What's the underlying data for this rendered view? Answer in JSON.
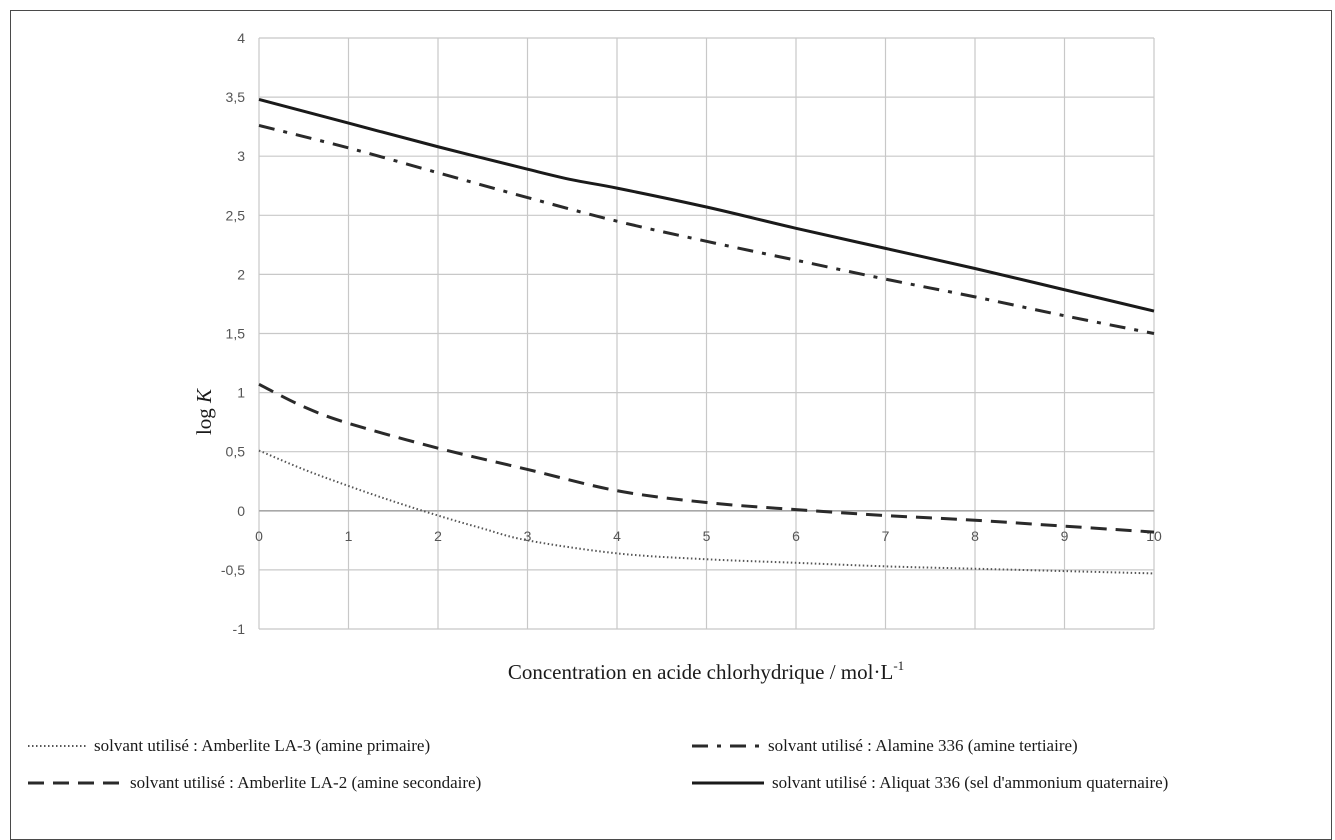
{
  "chart_data": {
    "type": "line",
    "xlabel": "Concentration en acide chlorhydrique / mol·L",
    "xlabel_superscript": "-1",
    "ylabel_prefix": "log ",
    "ylabel_variable": "K",
    "xlim": [
      0,
      10
    ],
    "ylim": [
      -1,
      4
    ],
    "x_ticks": [
      0,
      1,
      2,
      3,
      4,
      5,
      6,
      7,
      8,
      9,
      10
    ],
    "x_tick_labels": [
      "0",
      "1",
      "2",
      "3",
      "4",
      "5",
      "6",
      "7",
      "8",
      "9",
      "10"
    ],
    "y_ticks": [
      -1,
      -0.5,
      0,
      0.5,
      1,
      1.5,
      2,
      2.5,
      3,
      3.5,
      4
    ],
    "y_tick_labels": [
      "-1",
      "-0,5",
      "0",
      "0,5",
      "1",
      "1,5",
      "2",
      "2,5",
      "3",
      "3,5",
      "4"
    ],
    "grid": true,
    "legend_position": "bottom",
    "series": [
      {
        "name": "solvant utilisé : Amberlite LA-3 (amine primaire)",
        "style": "dotted",
        "color": "#555555",
        "x": [
          0,
          0.5,
          1,
          1.5,
          2,
          2.5,
          3,
          4,
          5,
          6,
          7,
          8,
          9,
          10
        ],
        "y": [
          0.51,
          0.35,
          0.21,
          0.08,
          -0.04,
          -0.15,
          -0.25,
          -0.36,
          -0.41,
          -0.44,
          -0.47,
          -0.49,
          -0.51,
          -0.53
        ]
      },
      {
        "name": "solvant utilisé : Amberlite LA-2 (amine secondaire)",
        "style": "dashed",
        "color": "#2a2a2a",
        "x": [
          0,
          0.5,
          1,
          2,
          3,
          4,
          5,
          6,
          7,
          8,
          9,
          10
        ],
        "y": [
          1.07,
          0.88,
          0.74,
          0.53,
          0.35,
          0.17,
          0.07,
          0.01,
          -0.04,
          -0.08,
          -0.13,
          -0.18
        ]
      },
      {
        "name": "solvant utilisé : Alamine 336 (amine tertiaire)",
        "style": "dashdot",
        "color": "#2a2a2a",
        "x": [
          0,
          1,
          2,
          3,
          4,
          5,
          6,
          7,
          8,
          9,
          10
        ],
        "y": [
          3.26,
          3.07,
          2.86,
          2.65,
          2.45,
          2.28,
          2.12,
          1.96,
          1.81,
          1.65,
          1.5
        ]
      },
      {
        "name": "solvant utilisé : Aliquat 336 (sel d'ammonium quaternaire)",
        "style": "solid",
        "color": "#1a1a1a",
        "x": [
          0,
          1,
          2,
          3,
          3.5,
          4,
          5,
          6,
          7,
          8,
          9,
          10
        ],
        "y": [
          3.48,
          3.28,
          3.08,
          2.89,
          2.8,
          2.73,
          2.57,
          2.39,
          2.22,
          2.05,
          1.87,
          1.69
        ]
      }
    ]
  }
}
